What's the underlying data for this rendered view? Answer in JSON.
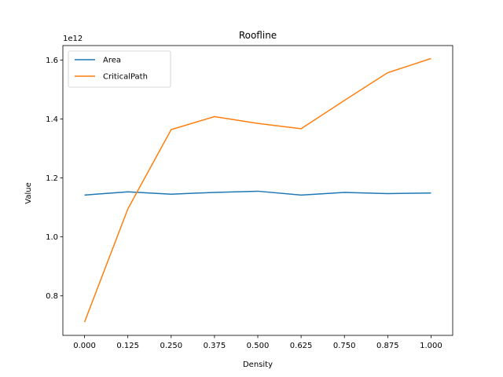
{
  "chart_data": {
    "type": "line",
    "title": "Roofline",
    "xlabel": "Density",
    "ylabel": "Value",
    "y_offset_text": "1e12",
    "x": [
      0.0,
      0.125,
      0.25,
      0.375,
      0.5,
      0.625,
      0.75,
      0.875,
      1.0
    ],
    "x_tick_labels": [
      "0.000",
      "0.125",
      "0.250",
      "0.375",
      "0.500",
      "0.625",
      "0.750",
      "0.875",
      "1.000"
    ],
    "y_ticks": [
      0.8,
      1.0,
      1.2,
      1.4,
      1.6
    ],
    "y_tick_labels": [
      "0.8",
      "1.0",
      "1.2",
      "1.4",
      "1.6"
    ],
    "xlim": [
      -0.0625,
      1.0625
    ],
    "ylim": [
      0.666,
      1.649
    ],
    "grid": false,
    "legend_position": "upper-left",
    "series": [
      {
        "name": "Area",
        "color": "#1f77b4",
        "values": [
          1.142,
          1.153,
          1.145,
          1.151,
          1.155,
          1.142,
          1.151,
          1.147,
          1.149
        ]
      },
      {
        "name": "CriticalPath",
        "color": "#ff7f0e",
        "values": [
          0.711,
          1.095,
          1.364,
          1.408,
          1.385,
          1.367,
          1.463,
          1.557,
          1.605
        ]
      }
    ]
  }
}
